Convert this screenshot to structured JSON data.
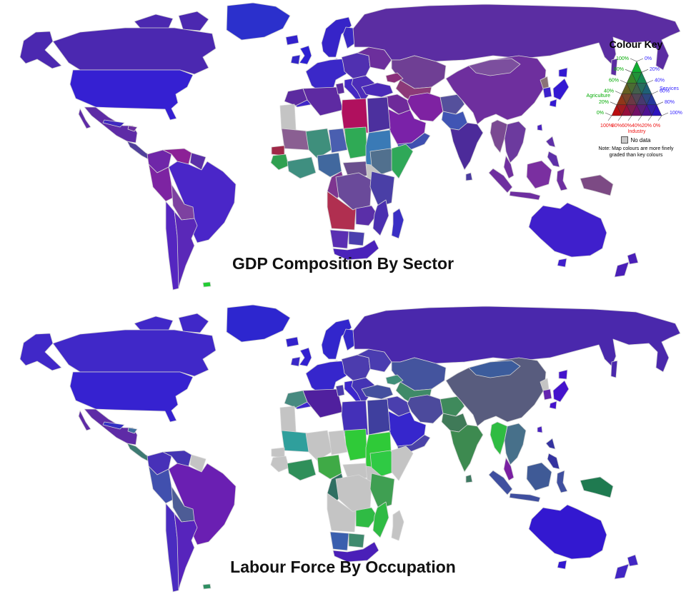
{
  "page": {
    "background": "#ffffff",
    "border_color": "#d6d6d6"
  },
  "maps": [
    {
      "id": "gdp",
      "title": "GDP Composition By Sector",
      "region_colors": {
        "greenland": "#2b30cc",
        "arctic1": "#4b28b0",
        "arctic2": "#4b28b0",
        "alaska": "#4b28b0",
        "canada": "#4b28b0",
        "usa": "#3520d2",
        "baja": "#5e2ba6",
        "mexico": "#5e2ba6",
        "central_america": "#50409a",
        "cuba": "#3f28c0",
        "hispaniola": "#6a2f9f",
        "colombia": "#6f26a8",
        "venezuela": "#8c2196",
        "guyanas": "#5a2fa8",
        "brazil": "#4a26c8",
        "peru": "#7d24a2",
        "bolivia": "#7d41a0",
        "chile": "#5526c0",
        "argentina": "#5a28b8",
        "falklands": "#22cc33",
        "iceland": "#3322cc",
        "uk": "#2c20d2",
        "ireland": "#3326c8",
        "scandinavia": "#3624c8",
        "finland": "#3a28c4",
        "denmark": "#3324cc",
        "west_europe": "#3b28c8",
        "iberia": "#4026c8",
        "italy": "#4428c4",
        "east_europe": "#5030b0",
        "balkans_greece": "#4c2cb8",
        "ukraine_belarus": "#6c2f9c",
        "russia": "#5b2da2",
        "sakhalin": "#5b2da2",
        "kazakhstan": "#6f3f94",
        "central_asia": "#8c3a78",
        "caucasus": "#8a2f7a",
        "turkey": "#4a2ab8",
        "levant_iraq": "#6e2a9a",
        "iran": "#7e22a2",
        "saudi_arabia": "#7a22a8",
        "yemen_oman": "#3f4fb0",
        "afghanistan": "#55509c",
        "pakistan": "#4055b4",
        "india": "#4c2b9a",
        "sri_lanka": "#4a3aa0",
        "china": "#6e2f9e",
        "mongolia": "#7c4f9e",
        "korea_n": "#8a7278",
        "korea_s": "#3c22cc",
        "japan_hokkaido": "#3319d2",
        "japan_honshu": "#3319d2",
        "japan_kyushu": "#3319d2",
        "taiwan": "#4a22c0",
        "myanmar": "#7a4a92",
        "indochina": "#6c3a9e",
        "malay_peninsula": "#702f9f",
        "sumatra": "#6e2fa0",
        "java": "#6e2fa0",
        "borneo": "#7a2fa0",
        "sulawesi": "#6e2fa0",
        "png": "#7c4a84",
        "philippines_n": "#5e2fa8",
        "philippines_s": "#5e2fa8",
        "australia": "#3f1fcc",
        "tasmania": "#3f1fcc",
        "nz_north": "#4a1fb8",
        "nz_south": "#4a1fb8",
        "morocco": "#5c2ba0",
        "algeria": "#5e2aa2",
        "tunisia": "#5c2ba0",
        "libya": "#b0105e",
        "egypt": "#4c309e",
        "western_sahara": "#c4c4c4",
        "mauritania": "#8a5f92",
        "mali": "#3f8f7c",
        "niger": "#4a5fb0",
        "chad": "#2faa55",
        "sudan": "#3a7ab6",
        "senegal_gambia": "#a02848",
        "guinea_sierra": "#2fa050",
        "ivory_ghana": "#3f8f80",
        "nigeria": "#41689e",
        "cameroon_gabon": "#7e3590",
        "car": "#6a4f8e",
        "south_sudan": "#c4c4c4",
        "ethiopia": "#51708e",
        "somalia": "#2fa858",
        "drc": "#6a4a9a",
        "east_africa": "#4a3fa6",
        "angola": "#b02f50",
        "zambia_zim": "#5a2fa8",
        "mozambique": "#4a2fb0",
        "namibia": "#5a2fb2",
        "botswana": "#4a3fae",
        "south_africa": "#4a22ba",
        "madagascar": "#3a2fc4"
      }
    },
    {
      "id": "labour",
      "title": "Labour Force By Occupation",
      "region_colors": {
        "greenland": "#2d26cf",
        "arctic1": "#4028c8",
        "arctic2": "#4028c8",
        "alaska": "#4028c8",
        "canada": "#4028c8",
        "usa": "#3622d0",
        "baja": "#5e2ba6",
        "mexico": "#5e2ba6",
        "central_america": "#3d7a72",
        "cuba": "#3330c4",
        "hispaniola": "#3f6f9f",
        "colombia": "#4731b8",
        "venezuela": "#4435b2",
        "guyanas": "#c4c4c4",
        "brazil": "#6a1fb2",
        "peru": "#4150ae",
        "bolivia": "#4d5c96",
        "chile": "#4a2cc0",
        "argentina": "#5724bc",
        "falklands": "#2f8f62",
        "iceland": "#3322cc",
        "uk": "#3220d0",
        "ireland": "#3a28c8",
        "scandinavia": "#3226cc",
        "finland": "#3428c8",
        "denmark": "#3324cc",
        "west_europe": "#3626cc",
        "iberia": "#3c28cc",
        "italy": "#3c26cc",
        "east_europe": "#4c3cae",
        "balkans_greece": "#4434b4",
        "ukraine_belarus": "#4a3cb0",
        "russia": "#4a28ac",
        "sakhalin": "#4a28ac",
        "kazakhstan": "#44549e",
        "central_asia": "#3f8a68",
        "caucasus": "#3f8f78",
        "turkey": "#44509e",
        "levant_iraq": "#4a3fae",
        "iran": "#4c4a9c",
        "saudi_arabia": "#3626cc",
        "yemen_oman": "#4a42a8",
        "afghanistan": "#3f8a5c",
        "pakistan": "#3f7a58",
        "india": "#3d8a50",
        "sri_lanka": "#3f7a62",
        "china": "#585c7e",
        "mongolia": "#3c5c9c",
        "korea_n": "#c4c4c4",
        "korea_s": "#6424b0",
        "japan_hokkaido": "#4413cc",
        "japan_honshu": "#4413cc",
        "japan_kyushu": "#4413cc",
        "taiwan": "#4a22c0",
        "myanmar": "#2fbc42",
        "indochina": "#47708a",
        "malay_peninsula": "#7a20a2",
        "sumatra": "#3f4f9f",
        "java": "#3f4f9f",
        "borneo": "#3f5a96",
        "sulawesi": "#3f4f9f",
        "png": "#1f7a50",
        "philippines_n": "#3432a0",
        "philippines_s": "#3432a0",
        "australia": "#3318d0",
        "tasmania": "#3318d0",
        "nz_north": "#4226c4",
        "nz_south": "#4226c4",
        "morocco": "#478a80",
        "algeria": "#50209e",
        "tunisia": "#4a3aae",
        "libya": "#4430b8",
        "egypt": "#3f3f9e",
        "western_sahara": "#c4c4c4",
        "mauritania": "#2f9f9c",
        "mali": "#c4c4c4",
        "niger": "#c4c4c4",
        "chad": "#2fca38",
        "sudan": "#2fca38",
        "senegal_gambia": "#c4c4c4",
        "guinea_sierra": "#c4c4c4",
        "ivory_ghana": "#2f8f5a",
        "nigeria": "#3faa46",
        "cameroon_gabon": "#2f6f62",
        "car": "#c4c4c4",
        "south_sudan": "#c4c4c4",
        "ethiopia": "#2fca44",
        "somalia": "#c4c4c4",
        "drc": "#c4c4c4",
        "east_africa": "#3f9f52",
        "angola": "#c4c4c4",
        "zambia_zim": "#2fbb44",
        "mozambique": "#2fbb44",
        "namibia": "#3a5fae",
        "botswana": "#3f8a6e",
        "south_africa": "#4a1fb8",
        "madagascar": "#c4c4c4"
      }
    }
  ],
  "colour_key": {
    "title": "Colour Key",
    "axes": {
      "agriculture": {
        "label": "Agriculture",
        "color": "#00aa00",
        "ticks": [
          "100%",
          "80%",
          "60%",
          "40%",
          "20%",
          "0%"
        ]
      },
      "services": {
        "label": "Services",
        "color": "#3322ff",
        "ticks": [
          "0%",
          "20%",
          "40%",
          "60%",
          "80%",
          "100%"
        ]
      },
      "industry": {
        "label": "Industry",
        "color": "#ee1111",
        "ticks": [
          "100%",
          "80%",
          "60%",
          "40%",
          "20%",
          "0%"
        ]
      }
    },
    "corner_colors": {
      "agriculture": "#00c828",
      "industry": "#d40000",
      "services": "#2206d8"
    },
    "no_data": {
      "label": "No data",
      "color": "#c8c8c8"
    },
    "note": "Note: Map colours are more finely graded than key colours"
  }
}
